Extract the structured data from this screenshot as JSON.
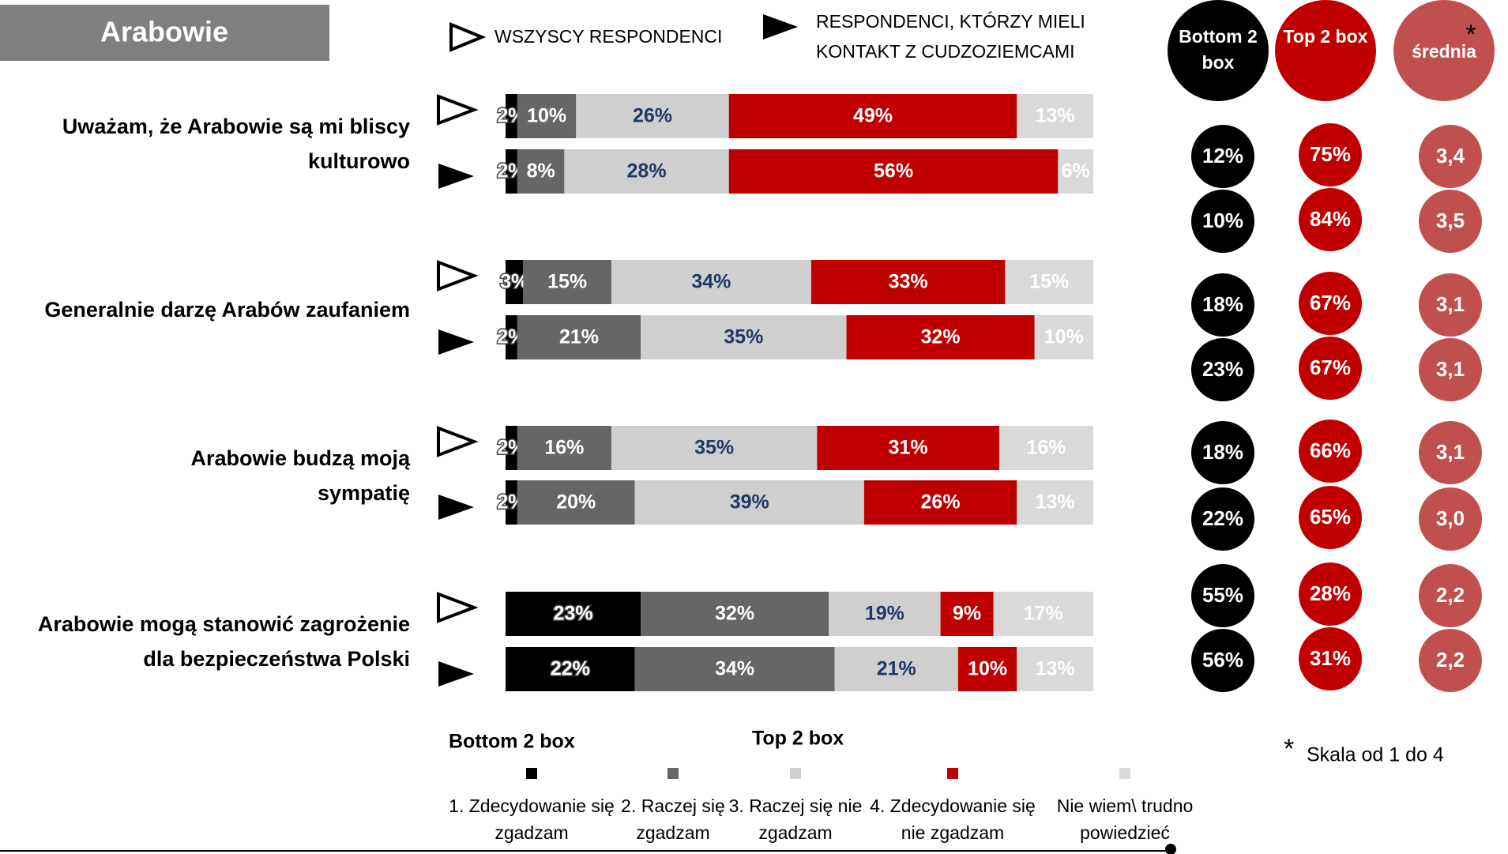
{
  "chart_data": {
    "type": "stacked_bar_h",
    "title": "Arabowie",
    "groups": [
      "WSZYSCY RESPONDENCI",
      "RESPONDENCI, KTÓRZY MIELI KONTAKT Z CUDZOZIEMCAMI"
    ],
    "categories": [
      "Uważam, że Arabowie są mi bliscy kulturowo",
      null,
      "Generalnie darzę Arabów zaufaniem",
      null,
      "Arabowie  budzą moją sympatię",
      null,
      "Arabowie  mogą stanowić zagrożenie dla bezpieczeństwa Polski",
      null
    ],
    "xlim": [
      0,
      100
    ],
    "series": [
      {
        "name": "1. Zdecydowanie się zgadzam",
        "color": "#000000",
        "label_color": "#ffffff",
        "values": [
          2,
          2,
          3,
          2,
          2,
          2,
          23,
          22
        ],
        "value_labels": [
          "2%",
          "2%",
          "3%",
          "2%",
          "2%",
          "2%",
          "23%",
          "22%"
        ]
      },
      {
        "name": "2. Raczej się zgadzam",
        "color": "#666666",
        "label_color": "#ffffff",
        "values": [
          10,
          8,
          15,
          21,
          16,
          20,
          32,
          34
        ],
        "value_labels": [
          "10%",
          "8%",
          "15%",
          "21%",
          "16%",
          "20%",
          "32%",
          "34%"
        ]
      },
      {
        "name": "3. Raczej się nie zgadzam",
        "color": "#cfcfcf",
        "label_color": "#1f3864",
        "values": [
          26,
          28,
          34,
          35,
          35,
          39,
          19,
          21
        ],
        "value_labels": [
          "26%",
          "28%",
          "34%",
          "35%",
          "35%",
          "39%",
          "19%",
          "21%"
        ]
      },
      {
        "name": "4. Zdecydowanie się nie zgadzam",
        "color": "#c00000",
        "label_color": "#ffffff",
        "values": [
          49,
          56,
          33,
          32,
          31,
          26,
          9,
          10
        ],
        "value_labels": [
          "49%",
          "56%",
          "33%",
          "32%",
          "31%",
          "26%",
          "9%",
          "10%"
        ]
      },
      {
        "name": "Nie wiem\\ trudno powiedzieć",
        "color": "#d9d9d9",
        "label_color": "#ffffff",
        "values": [
          13,
          6,
          15,
          10,
          16,
          13,
          17,
          13
        ],
        "value_labels": [
          "13%",
          "6%",
          "15%",
          "10%",
          "16%",
          "13%",
          "17%",
          "13%"
        ]
      }
    ],
    "legend_headings": [
      "Bottom 2 box",
      "Top 2 box"
    ],
    "summary": [
      {
        "name": "Bottom 2 box",
        "color": "#000000",
        "values": [
          12,
          10,
          18,
          23,
          18,
          22,
          55,
          56
        ],
        "value_labels": [
          "12%",
          "10%",
          "18%",
          "23%",
          "18%",
          "22%",
          "55%",
          "56%"
        ]
      },
      {
        "name": "Top 2 box",
        "color": "#c00000",
        "values": [
          75,
          84,
          67,
          67,
          66,
          65,
          28,
          31
        ],
        "value_labels": [
          "75%",
          "84%",
          "67%",
          "67%",
          "66%",
          "65%",
          "28%",
          "31%"
        ]
      },
      {
        "name": "średnia",
        "color": "#c0504d",
        "values": [
          3.4,
          3.5,
          3.1,
          3.1,
          3.1,
          3.0,
          2.2,
          2.2
        ],
        "value_labels": [
          "3,4",
          "3,5",
          "3,1",
          "3,1",
          "3,1",
          "3,0",
          "2,2",
          "2,2"
        ]
      }
    ],
    "note_marker": "*",
    "footnote": "Skala od 1 do 4"
  }
}
